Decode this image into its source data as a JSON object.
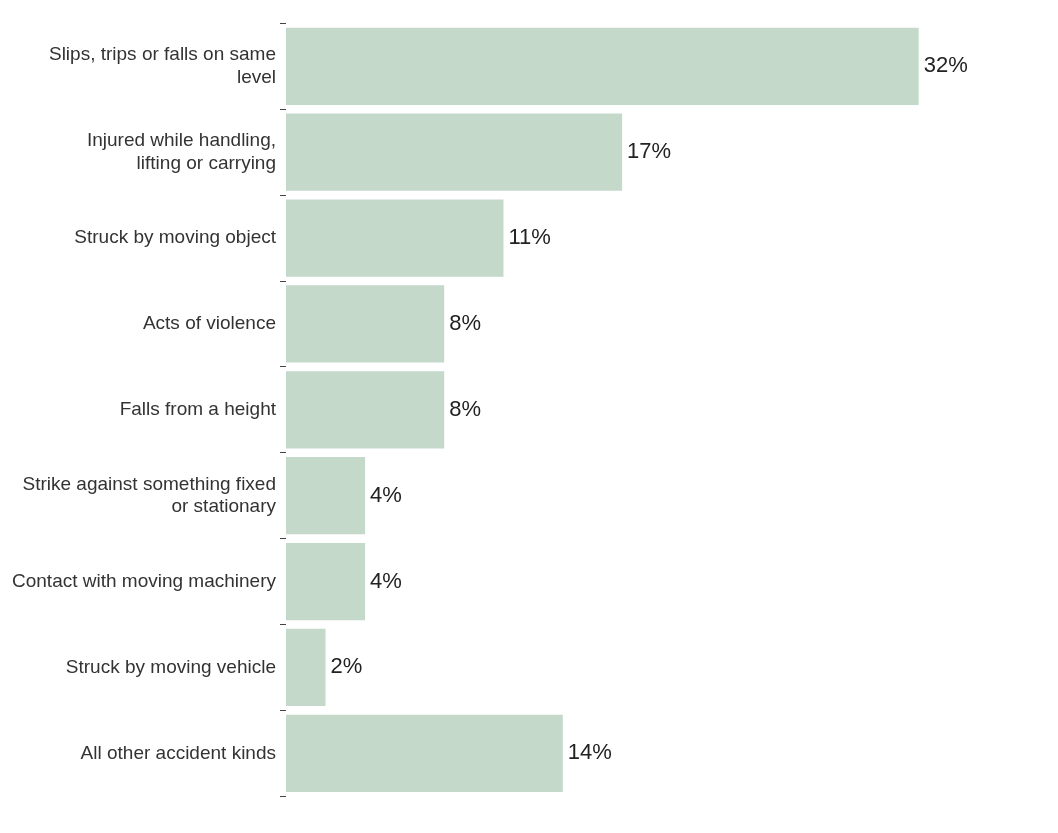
{
  "chart_data": {
    "type": "bar",
    "orientation": "horizontal",
    "categories": [
      "Slips, trips or falls on same level",
      "Injured while handling, lifting or carrying",
      "Struck by moving object",
      "Acts of violence",
      "Falls from a height",
      "Strike against something fixed or stationary",
      "Contact with moving machinery",
      "Struck by moving vehicle",
      "All other accident kinds"
    ],
    "values": [
      32,
      17,
      11,
      8,
      8,
      4,
      4,
      2,
      14
    ],
    "value_labels": [
      "32%",
      "17%",
      "11%",
      "8%",
      "8%",
      "4%",
      "4%",
      "2%",
      "14%"
    ],
    "color": "#c5d9cb",
    "grid": false,
    "legend": false
  }
}
